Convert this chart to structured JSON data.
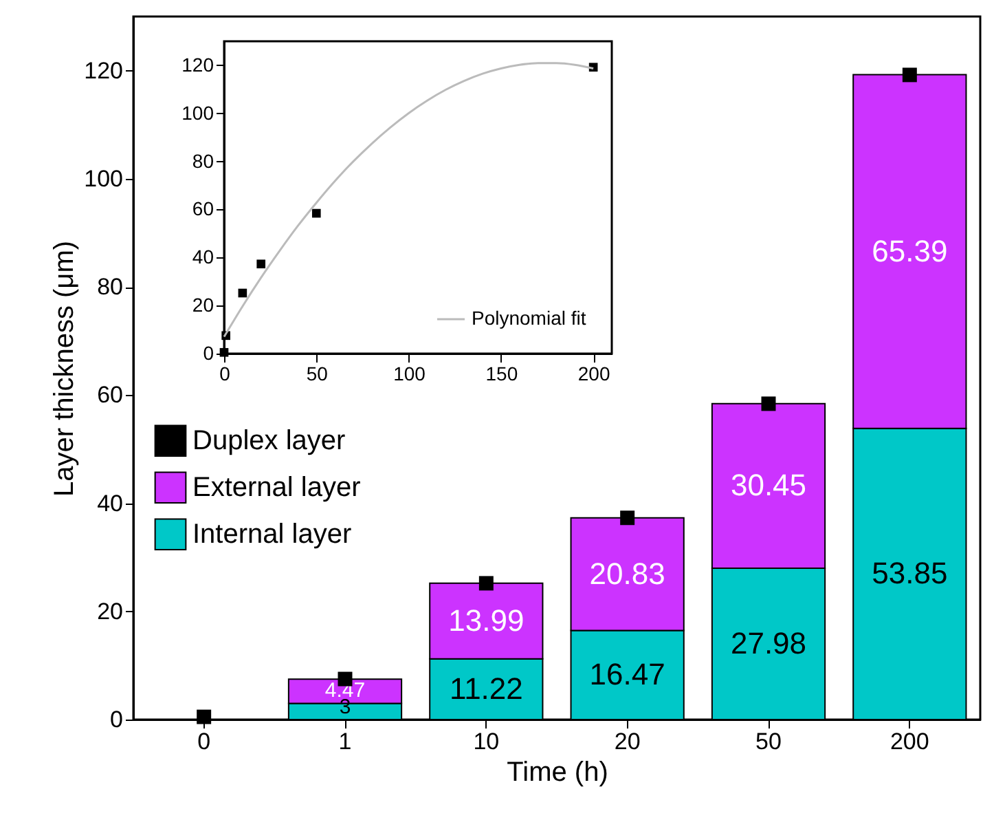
{
  "chart_data": [
    {
      "type": "bar",
      "xlabel": "Time (h)",
      "ylabel": "Layer thickness (μm)",
      "categories": [
        "0",
        "1",
        "10",
        "20",
        "50",
        "200"
      ],
      "stacked": true,
      "legend": "left",
      "ylim": [
        0,
        130
      ],
      "yticks": [
        0,
        20,
        40,
        60,
        80,
        100,
        120
      ],
      "series": [
        {
          "name": "Internal layer",
          "color": "#00c8c8",
          "values": [
            null,
            3,
            11.22,
            16.47,
            27.98,
            53.85
          ],
          "value_labels": [
            null,
            "3",
            "11.22",
            "16.47",
            "27.98",
            "53.85"
          ]
        },
        {
          "name": "External layer",
          "color": "#cc33ff",
          "values": [
            null,
            4.47,
            13.99,
            20.83,
            30.45,
            65.39
          ],
          "value_labels": [
            null,
            "4.47",
            "13.99",
            "20.83",
            "30.45",
            "65.39"
          ]
        },
        {
          "name": "Duplex layer",
          "type": "scatter",
          "color": "#000000",
          "marker": "square",
          "x": [
            "0",
            "1",
            "10",
            "20",
            "50",
            "200"
          ],
          "values": [
            0.5,
            7.5,
            25.2,
            37.3,
            58.4,
            119.2
          ]
        }
      ]
    },
    {
      "type": "scatter",
      "xlim": [
        0,
        210
      ],
      "xticks": [
        0,
        50,
        100,
        150,
        200
      ],
      "ylim": [
        0,
        130
      ],
      "yticks": [
        0,
        20,
        40,
        60,
        80,
        100,
        120
      ],
      "legend": "bottom right",
      "series": [
        {
          "color": "#000000",
          "marker": "square",
          "x": [
            0,
            1,
            10,
            20,
            50,
            200
          ],
          "values": [
            0.5,
            7.5,
            25.2,
            37.3,
            58.4,
            119.2
          ]
        },
        {
          "name": "Polynomial fit",
          "type": "line",
          "color": "#bbbbbb",
          "x": [
            0,
            10,
            20,
            30,
            40,
            50,
            60,
            70,
            80,
            90,
            100,
            110,
            120,
            130,
            140,
            150,
            160,
            170,
            180,
            190,
            200
          ],
          "values": [
            7,
            19.7,
            31.6,
            42.7,
            53.2,
            62.8,
            71.8,
            80,
            87.4,
            94.1,
            100.1,
            105.3,
            109.8,
            113.5,
            116.5,
            118.7,
            120.2,
            120.9,
            120.9,
            120.2,
            118.7
          ]
        }
      ]
    }
  ]
}
